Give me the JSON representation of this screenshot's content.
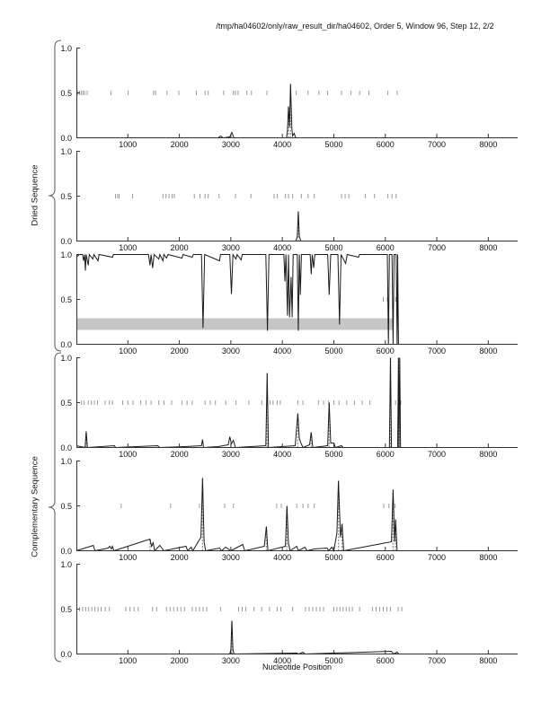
{
  "header": {
    "title": "/tmp/ha04602/only/raw_result_dir/ha04602, Order 5, Window 96, Step 12, 2/2"
  },
  "groups": {
    "top_label": "Dried Sequence",
    "bottom_label": "Complementary Sequence"
  },
  "colors": {
    "line": "#1a1a1a",
    "axis": "#333333",
    "half_tick_dash": "#9a9a9a",
    "stem": "#999999",
    "band": "#c6c6c6",
    "brace": "#666666"
  },
  "chart_data": {
    "type": "line",
    "title": "/tmp/ha04602/only/raw_result_dir/ha04602, Order 5, Window 96, Step 12, 2/2",
    "xlabel": "Nucleotide Position",
    "ylabel_top_group": "Dried Sequence",
    "ylabel_bottom_group": "Complementary Sequence",
    "x_range": [
      0,
      8570
    ],
    "y_range": [
      0,
      1
    ],
    "x_tick_values": [
      1000,
      2000,
      3000,
      4000,
      5000,
      6000,
      7000,
      8000
    ],
    "y_tick_labels": [
      "1.0",
      "0.5",
      "0.0"
    ],
    "grid": false,
    "legend": false,
    "subplots": [
      {
        "name": "dried-profile-1",
        "line": [
          [
            0,
            0
          ],
          [
            2750,
            0
          ],
          [
            2800,
            0.02
          ],
          [
            2850,
            0
          ],
          [
            2980,
            0.01
          ],
          [
            3020,
            0.06
          ],
          [
            3060,
            0
          ],
          [
            4080,
            0
          ],
          [
            4100,
            0.08
          ],
          [
            4120,
            0.35
          ],
          [
            4140,
            0.12
          ],
          [
            4160,
            0.6
          ],
          [
            4185,
            0.1
          ],
          [
            4200,
            0.02
          ],
          [
            4230,
            0.05
          ],
          [
            4260,
            0
          ],
          [
            6300,
            0
          ]
        ],
        "stems": [
          [
            4120,
            0.35
          ],
          [
            4160,
            0.6
          ]
        ],
        "half_ticks": [
          30,
          60,
          95,
          130,
          160,
          210,
          670,
          1005,
          1500,
          1540,
          1760,
          1990,
          2330,
          2500,
          2560,
          2860,
          3050,
          3090,
          3140,
          3310,
          3400,
          3700,
          4270,
          4500,
          4710,
          4880,
          5150,
          5330,
          5500,
          5680,
          6050,
          6230
        ],
        "band": null
      },
      {
        "name": "dried-profile-2",
        "line": [
          [
            0,
            0
          ],
          [
            4260,
            0
          ],
          [
            4290,
            0.05
          ],
          [
            4310,
            0.33
          ],
          [
            4330,
            0.05
          ],
          [
            4360,
            0
          ],
          [
            6300,
            0
          ]
        ],
        "stems": [
          [
            4310,
            0.33
          ]
        ],
        "half_ticks": [
          760,
          800,
          830,
          1090,
          1680,
          1740,
          1800,
          1860,
          1900,
          2290,
          2400,
          2500,
          2560,
          2770,
          3090,
          3390,
          3840,
          3900,
          4060,
          4120,
          4200,
          4370,
          4500,
          4620,
          5150,
          5220,
          5290,
          5610,
          5790,
          6050,
          6130,
          6210
        ],
        "band": null
      },
      {
        "name": "similarity-profile",
        "line": [
          [
            0,
            0.97
          ],
          [
            60,
            1
          ],
          [
            120,
            1
          ],
          [
            140,
            0.93
          ],
          [
            160,
            1
          ],
          [
            175,
            0.82
          ],
          [
            190,
            1
          ],
          [
            230,
            0.88
          ],
          [
            250,
            1
          ],
          [
            320,
            0.95
          ],
          [
            340,
            1
          ],
          [
            420,
            0.93
          ],
          [
            440,
            1
          ],
          [
            700,
            0.97
          ],
          [
            720,
            1
          ],
          [
            1400,
            1
          ],
          [
            1430,
            0.88
          ],
          [
            1450,
            1
          ],
          [
            1480,
            0.85
          ],
          [
            1510,
            1
          ],
          [
            1600,
            0.95
          ],
          [
            1620,
            1
          ],
          [
            1680,
            0.93
          ],
          [
            1700,
            1
          ],
          [
            1750,
            0.96
          ],
          [
            1780,
            1
          ],
          [
            2050,
            0.96
          ],
          [
            2070,
            1
          ],
          [
            2250,
            0.97
          ],
          [
            2270,
            1
          ],
          [
            2430,
            1
          ],
          [
            2460,
            0.18
          ],
          [
            2490,
            1
          ],
          [
            2780,
            0.93
          ],
          [
            2800,
            1
          ],
          [
            2980,
            1
          ],
          [
            3010,
            0.56
          ],
          [
            3040,
            1
          ],
          [
            3100,
            0.95
          ],
          [
            3120,
            1
          ],
          [
            3200,
            0.94
          ],
          [
            3220,
            1
          ],
          [
            3680,
            1
          ],
          [
            3710,
            0.15
          ],
          [
            3740,
            1
          ],
          [
            4030,
            1
          ],
          [
            4050,
            0.7
          ],
          [
            4070,
            1
          ],
          [
            4100,
            0.32
          ],
          [
            4120,
            1
          ],
          [
            4140,
            0.3
          ],
          [
            4170,
            0.75
          ],
          [
            4190,
            0.3
          ],
          [
            4210,
            1
          ],
          [
            4290,
            1
          ],
          [
            4310,
            0.15
          ],
          [
            4330,
            1
          ],
          [
            4350,
            0.55
          ],
          [
            4370,
            1
          ],
          [
            4540,
            1
          ],
          [
            4560,
            0.78
          ],
          [
            4580,
            1
          ],
          [
            4610,
            0.85
          ],
          [
            4630,
            1
          ],
          [
            4880,
            1
          ],
          [
            4910,
            0.55
          ],
          [
            4940,
            1
          ],
          [
            5080,
            1
          ],
          [
            5110,
            0.22
          ],
          [
            5140,
            1
          ],
          [
            5230,
            0.9
          ],
          [
            5260,
            1
          ],
          [
            5480,
            0.97
          ],
          [
            5500,
            1
          ],
          [
            6040,
            1
          ],
          [
            6060,
            0
          ],
          [
            6080,
            1
          ],
          [
            6130,
            1
          ],
          [
            6150,
            0
          ],
          [
            6170,
            1
          ],
          [
            6210,
            1
          ],
          [
            6230,
            0
          ],
          [
            6240,
            1
          ],
          [
            6255,
            0
          ]
        ],
        "stems": [],
        "half_ticks": [
          5960,
          6040,
          6200
        ],
        "band": {
          "x0": 0,
          "x1": 6160,
          "y0": 0.16,
          "y1": 0.29
        }
      },
      {
        "name": "complementary-profile-1",
        "line": [
          [
            0,
            0.02
          ],
          [
            170,
            0
          ],
          [
            190,
            0.18
          ],
          [
            215,
            0
          ],
          [
            740,
            0.02
          ],
          [
            760,
            0
          ],
          [
            1580,
            0.02
          ],
          [
            1620,
            0
          ],
          [
            2100,
            0.01
          ],
          [
            2430,
            0.02
          ],
          [
            2450,
            0.09
          ],
          [
            2470,
            0
          ],
          [
            2750,
            0.01
          ],
          [
            2950,
            0.03
          ],
          [
            2980,
            0.12
          ],
          [
            3010,
            0.04
          ],
          [
            3050,
            0.08
          ],
          [
            3090,
            0
          ],
          [
            3680,
            0.02
          ],
          [
            3705,
            0.83
          ],
          [
            3730,
            0
          ],
          [
            4250,
            0.02
          ],
          [
            4300,
            0.38
          ],
          [
            4330,
            0.1
          ],
          [
            4360,
            0.05
          ],
          [
            4400,
            0
          ],
          [
            4530,
            0.03
          ],
          [
            4560,
            0.17
          ],
          [
            4590,
            0
          ],
          [
            4880,
            0.02
          ],
          [
            4910,
            0.5
          ],
          [
            4940,
            0.05
          ],
          [
            5000,
            0.05
          ],
          [
            5030,
            0
          ],
          [
            5150,
            0.02
          ],
          [
            5180,
            0
          ],
          [
            6080,
            0
          ],
          [
            6100,
            1.0
          ],
          [
            6120,
            0
          ],
          [
            6240,
            0
          ],
          [
            6255,
            1.0
          ],
          [
            6265,
            0
          ],
          [
            6280,
            1.0
          ],
          [
            6295,
            0
          ],
          [
            6300,
            0
          ]
        ],
        "stems": [
          [
            190,
            0.18
          ],
          [
            3705,
            0.83
          ],
          [
            4300,
            0.38
          ],
          [
            4560,
            0.17
          ],
          [
            4910,
            0.5
          ],
          [
            6100,
            1.0
          ],
          [
            6255,
            1.0
          ],
          [
            6280,
            1.0
          ]
        ],
        "half_ticks": [
          100,
          150,
          230,
          290,
          350,
          410,
          560,
          640,
          700,
          900,
          1000,
          1100,
          1250,
          1350,
          1450,
          1600,
          1700,
          1850,
          2050,
          2150,
          2250,
          2500,
          2600,
          2700,
          2900,
          3100,
          3350,
          3600,
          3700,
          3760,
          3820,
          3900,
          3960,
          4300,
          4400,
          4700,
          4800,
          4900,
          5000,
          5100,
          5250,
          5400,
          5550,
          5700,
          6100,
          6200,
          6300
        ],
        "band": null
      },
      {
        "name": "complementary-profile-2",
        "line": [
          [
            0,
            0
          ],
          [
            330,
            0.06
          ],
          [
            360,
            0
          ],
          [
            620,
            0.03
          ],
          [
            650,
            0.05
          ],
          [
            680,
            0.02
          ],
          [
            700,
            0.05
          ],
          [
            730,
            0
          ],
          [
            1430,
            0.13
          ],
          [
            1460,
            0.05
          ],
          [
            1490,
            0.09
          ],
          [
            1520,
            0
          ],
          [
            1620,
            0.06
          ],
          [
            1660,
            0.03
          ],
          [
            1700,
            0
          ],
          [
            2130,
            0.05
          ],
          [
            2160,
            0
          ],
          [
            2230,
            0.04
          ],
          [
            2260,
            0
          ],
          [
            2420,
            0.15
          ],
          [
            2450,
            0.81
          ],
          [
            2480,
            0.1
          ],
          [
            2510,
            0
          ],
          [
            2780,
            0.03
          ],
          [
            2820,
            0
          ],
          [
            2900,
            0.04
          ],
          [
            2950,
            0.02
          ],
          [
            3000,
            0
          ],
          [
            3230,
            0.07
          ],
          [
            3270,
            0
          ],
          [
            3430,
            0.02
          ],
          [
            3650,
            0.05
          ],
          [
            3690,
            0.27
          ],
          [
            3720,
            0
          ],
          [
            4060,
            0.05
          ],
          [
            4090,
            0.5
          ],
          [
            4120,
            0.08
          ],
          [
            4150,
            0
          ],
          [
            4280,
            0.05
          ],
          [
            4310,
            0
          ],
          [
            4440,
            0.04
          ],
          [
            4480,
            0
          ],
          [
            4620,
            0.02
          ],
          [
            4870,
            0.03
          ],
          [
            4900,
            0
          ],
          [
            4960,
            0.04
          ],
          [
            5000,
            0
          ],
          [
            5060,
            0.2
          ],
          [
            5090,
            0.78
          ],
          [
            5130,
            0.15
          ],
          [
            5160,
            0.3
          ],
          [
            5190,
            0
          ],
          [
            6120,
            0.1
          ],
          [
            6150,
            0.68
          ],
          [
            6180,
            0.1
          ],
          [
            6200,
            0.35
          ],
          [
            6230,
            0
          ],
          [
            6300,
            0
          ]
        ],
        "stems": [
          [
            2450,
            0.81
          ],
          [
            3690,
            0.27
          ],
          [
            4090,
            0.5
          ],
          [
            5090,
            0.78
          ],
          [
            5160,
            0.3
          ],
          [
            6150,
            0.68
          ],
          [
            6200,
            0.35
          ],
          [
            1430,
            0.13
          ]
        ],
        "half_ticks": [
          870,
          1830,
          2390,
          2880,
          3050,
          3890,
          3980,
          4280,
          4400,
          4500,
          4620,
          5100,
          5970,
          6070,
          6190
        ],
        "band": null
      },
      {
        "name": "complementary-profile-3",
        "line": [
          [
            0,
            0
          ],
          [
            2980,
            0
          ],
          [
            3000,
            0.05
          ],
          [
            3020,
            0.37
          ],
          [
            3040,
            0.05
          ],
          [
            3060,
            0
          ],
          [
            4280,
            0.01
          ],
          [
            4320,
            0
          ],
          [
            4400,
            0.02
          ],
          [
            4440,
            0
          ],
          [
            6120,
            0.03
          ],
          [
            6160,
            0
          ],
          [
            6230,
            0.02
          ],
          [
            6260,
            0
          ],
          [
            6300,
            0
          ]
        ],
        "stems": [
          [
            3020,
            0.37
          ]
        ],
        "half_ticks": [
          60,
          120,
          180,
          240,
          300,
          360,
          420,
          480,
          560,
          640,
          960,
          1040,
          1120,
          1200,
          1480,
          1560,
          1750,
          1820,
          1890,
          1960,
          2030,
          2100,
          2250,
          2320,
          2390,
          2460,
          2530,
          2800,
          3150,
          3220,
          3290,
          3450,
          3600,
          3750,
          3900,
          3970,
          4200,
          4450,
          4520,
          4590,
          4660,
          4730,
          4800,
          5000,
          5060,
          5120,
          5180,
          5240,
          5300,
          5360,
          5500,
          5750,
          5820,
          5890,
          5960,
          6030,
          6100,
          6250,
          6320
        ],
        "band": null
      }
    ]
  }
}
